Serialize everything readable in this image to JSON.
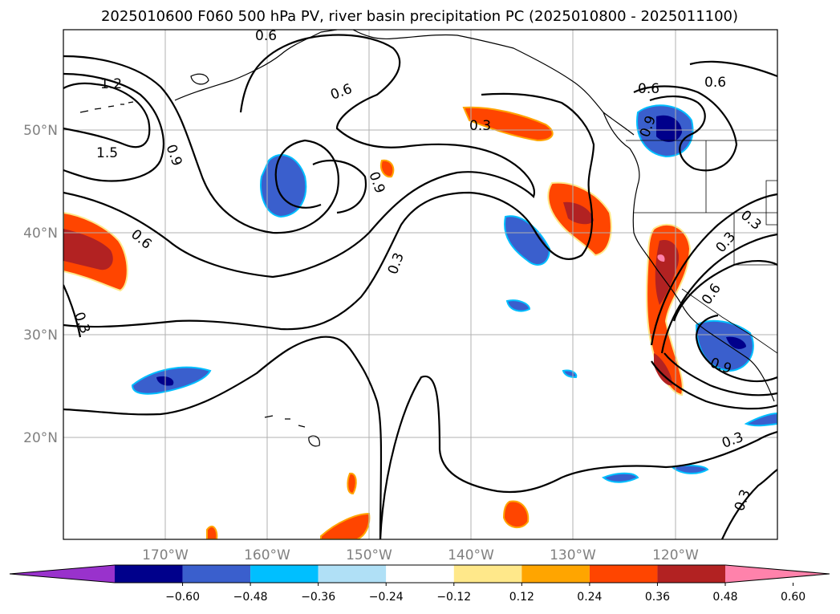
{
  "title": "2025010600 F060 500 hPa PV, river basin precipitation PC (2025010800 - 2025011100)",
  "map": {
    "lat_labels": [
      "50°N",
      "40°N",
      "30°N",
      "20°N"
    ],
    "lon_labels": [
      "170°W",
      "160°W",
      "150°W",
      "140°W",
      "130°W",
      "120°W"
    ],
    "grid": true
  },
  "contour_labels": [
    "1.2",
    "1.5",
    "0.9",
    "0.6",
    "0.6",
    "0.3",
    "0.9",
    "0.3",
    "0.6",
    "0.6",
    "0.9",
    "0.6",
    "0.3",
    "0.6",
    "0.3",
    "0.9",
    "0.3",
    "0.3",
    "0.3"
  ],
  "colorbar": {
    "ticks": [
      "−0.60",
      "−0.48",
      "−0.36",
      "−0.24",
      "−0.12",
      "0.12",
      "0.24",
      "0.36",
      "0.48",
      "0.60"
    ],
    "colors": [
      "#9932cc",
      "#00008b",
      "#3a5fcd",
      "#00bfff",
      "#b0e0f6",
      "#ffffff",
      "#ffe88a",
      "#ffa500",
      "#ff4500",
      "#b22222",
      "#ff82ab"
    ]
  }
}
